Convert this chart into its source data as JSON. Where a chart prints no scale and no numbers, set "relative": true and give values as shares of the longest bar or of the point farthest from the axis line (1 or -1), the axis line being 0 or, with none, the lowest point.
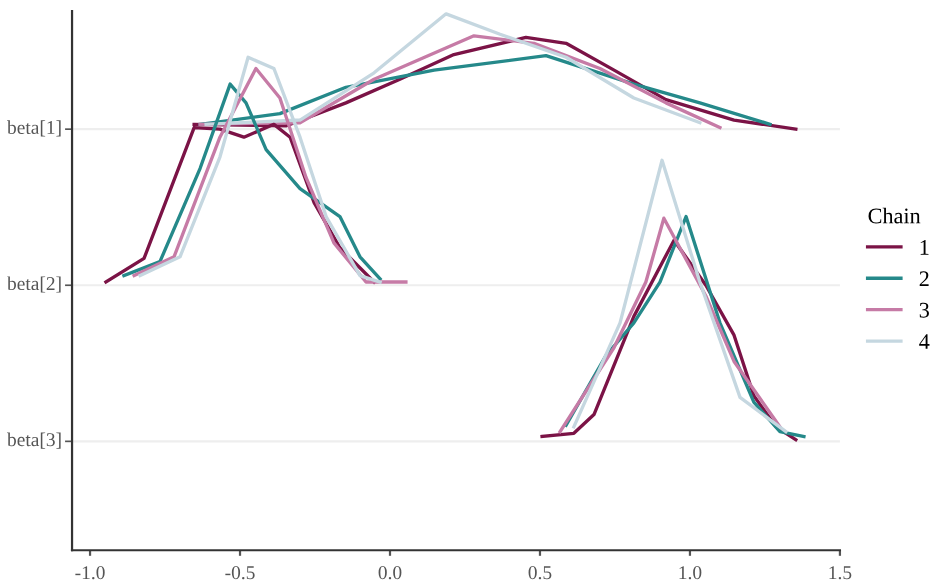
{
  "chart_data": {
    "type": "line",
    "relative": true,
    "legend_title": "Chain",
    "legend": "right",
    "marker": "none",
    "line_style": "solid",
    "xlim": [
      -1.06,
      1.5
    ],
    "xticks": [
      {
        "value": -1.0,
        "label": "-1.0"
      },
      {
        "value": -0.5,
        "label": "-0.5"
      },
      {
        "value": 0.0,
        "label": "0.0"
      },
      {
        "value": 0.5,
        "label": "0.5"
      },
      {
        "value": 1.0,
        "label": "1.0"
      },
      {
        "value": 1.5,
        "label": "1.5"
      }
    ],
    "ref_lines": [
      {
        "axis": "y",
        "value": 0.785,
        "label": "beta[1]",
        "color": "#eeeeee"
      },
      {
        "axis": "y",
        "value": 0.494,
        "label": "beta[2]",
        "color": "#eeeeee"
      },
      {
        "axis": "y",
        "value": 0.203,
        "label": "beta[3]",
        "color": "#eeeeee"
      }
    ],
    "series": [
      {
        "name": "1",
        "color": "#7b1346",
        "x": [
          -0.653,
          -0.347,
          -0.147,
          0.033,
          0.213,
          0.453,
          0.587,
          0.747,
          0.92,
          1.147,
          1.353
        ],
        "values": [
          0.794,
          0.791,
          0.834,
          0.878,
          0.924,
          0.956,
          0.945,
          0.895,
          0.84,
          0.802,
          0.785
        ]
      },
      {
        "name": "2",
        "color": "#25898a",
        "x": [
          -0.633,
          -0.367,
          -0.147,
          0.147,
          0.52,
          0.813,
          1.033,
          1.267
        ],
        "values": [
          0.794,
          0.814,
          0.863,
          0.895,
          0.922,
          0.869,
          0.834,
          0.794
        ]
      },
      {
        "name": "3",
        "color": "#c67ba6",
        "x": [
          -0.633,
          -0.3,
          -0.053,
          0.28,
          0.48,
          0.7,
          0.92,
          1.1
        ],
        "values": [
          0.794,
          0.797,
          0.878,
          0.959,
          0.945,
          0.898,
          0.834,
          0.788
        ]
      },
      {
        "name": "4",
        "color": "#c5d7e0",
        "x": [
          -0.613,
          -0.3,
          -0.053,
          0.187,
          0.367,
          0.587,
          0.813,
          1.033
        ],
        "values": [
          0.794,
          0.802,
          0.89,
          1.0,
          0.962,
          0.919,
          0.843,
          0.797
        ]
      },
      {
        "color": "#7b1346",
        "x": [
          -0.947,
          -0.82,
          -0.653,
          -0.567,
          -0.487,
          -0.387,
          -0.333,
          -0.253,
          -0.167,
          -0.053
        ],
        "values": [
          0.5,
          0.544,
          0.788,
          0.785,
          0.77,
          0.794,
          0.77,
          0.648,
          0.564,
          0.5
        ]
      },
      {
        "color": "#25898a",
        "x": [
          -0.887,
          -0.767,
          -0.633,
          -0.533,
          -0.48,
          -0.413,
          -0.3,
          -0.167,
          -0.1,
          -0.033
        ],
        "values": [
          0.512,
          0.538,
          0.712,
          0.869,
          0.834,
          0.747,
          0.674,
          0.622,
          0.547,
          0.506
        ]
      },
      {
        "color": "#c67ba6",
        "x": [
          -0.853,
          -0.72,
          -0.567,
          -0.447,
          -0.367,
          -0.28,
          -0.187,
          -0.08,
          0.053
        ],
        "values": [
          0.512,
          0.547,
          0.77,
          0.898,
          0.843,
          0.695,
          0.573,
          0.5,
          0.5
        ]
      },
      {
        "color": "#c5d7e0",
        "x": [
          -0.833,
          -0.7,
          -0.567,
          -0.473,
          -0.387,
          -0.3,
          -0.213,
          -0.1,
          -0.033
        ],
        "values": [
          0.512,
          0.547,
          0.733,
          0.919,
          0.898,
          0.77,
          0.622,
          0.512,
          0.5
        ]
      },
      {
        "color": "#7b1346",
        "x": [
          0.507,
          0.613,
          0.68,
          0.813,
          0.947,
          1.053,
          1.147,
          1.213,
          1.287,
          1.353
        ],
        "values": [
          0.212,
          0.218,
          0.253,
          0.436,
          0.578,
          0.494,
          0.401,
          0.288,
          0.23,
          0.206
        ]
      },
      {
        "color": "#25898a",
        "x": [
          0.587,
          0.72,
          0.813,
          0.9,
          0.987,
          1.1,
          1.213,
          1.3,
          1.38
        ],
        "values": [
          0.233,
          0.363,
          0.424,
          0.5,
          0.622,
          0.424,
          0.276,
          0.221,
          0.212
        ]
      },
      {
        "color": "#c67ba6",
        "x": [
          0.567,
          0.747,
          0.853,
          0.913,
          1.053,
          1.147,
          1.3
        ],
        "values": [
          0.221,
          0.378,
          0.5,
          0.619,
          0.474,
          0.352,
          0.23
        ]
      },
      {
        "color": "#c5d7e0",
        "x": [
          0.613,
          0.767,
          0.907,
          1.033,
          1.167,
          1.32
        ],
        "values": [
          0.23,
          0.424,
          0.727,
          0.5,
          0.285,
          0.221
        ]
      }
    ]
  }
}
